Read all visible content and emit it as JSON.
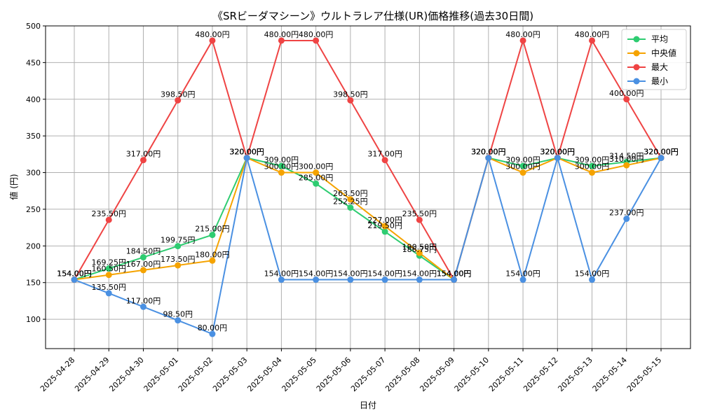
{
  "chart_data": {
    "type": "line",
    "title": "《SRビーダマシーン》ウルトラレア仕様(UR)価格推移(過去30日間)",
    "xlabel": "日付",
    "ylabel": "値 (円)",
    "ylim": [
      60,
      500
    ],
    "yticks": [
      100,
      150,
      200,
      250,
      300,
      350,
      400,
      450,
      500
    ],
    "grid": true,
    "legend_position": "top-right",
    "value_suffix": "円",
    "categories": [
      "2025-04-28",
      "2025-04-29",
      "2025-04-30",
      "2025-05-01",
      "2025-05-02",
      "2025-05-03",
      "2025-05-04",
      "2025-05-05",
      "2025-05-06",
      "2025-05-07",
      "2025-05-08",
      "2025-05-09",
      "2025-05-10",
      "2025-05-11",
      "2025-05-12",
      "2025-05-13",
      "2025-05-14",
      "2025-05-15"
    ],
    "series": [
      {
        "name": "平均",
        "color": "#2ecc71",
        "values": [
          154.0,
          169.25,
          184.5,
          199.75,
          215.0,
          320.0,
          309.0,
          285.0,
          252.25,
          219.5,
          186.75,
          154.0,
          320.0,
          309.0,
          320.0,
          309.0,
          314.5,
          320.0
        ]
      },
      {
        "name": "中央値",
        "color": "#f5a300",
        "values": [
          154.0,
          160.5,
          167.0,
          173.5,
          180.0,
          320.0,
          300.0,
          300.0,
          263.5,
          227.0,
          190.5,
          154.0,
          320.0,
          300.0,
          320.0,
          300.0,
          310.0,
          320.0
        ]
      },
      {
        "name": "最大",
        "color": "#ef4444",
        "values": [
          154.0,
          235.5,
          317.0,
          398.5,
          480.0,
          320.0,
          480.0,
          480.0,
          398.5,
          317.0,
          235.5,
          154.0,
          320.0,
          480.0,
          320.0,
          480.0,
          400.0,
          320.0
        ]
      },
      {
        "name": "最小",
        "color": "#4a90e2",
        "values": [
          154.0,
          135.5,
          117.0,
          98.5,
          80.0,
          320.0,
          154.0,
          154.0,
          154.0,
          154.0,
          154.0,
          154.0,
          320.0,
          154.0,
          320.0,
          154.0,
          237.0,
          320.0
        ]
      }
    ]
  }
}
